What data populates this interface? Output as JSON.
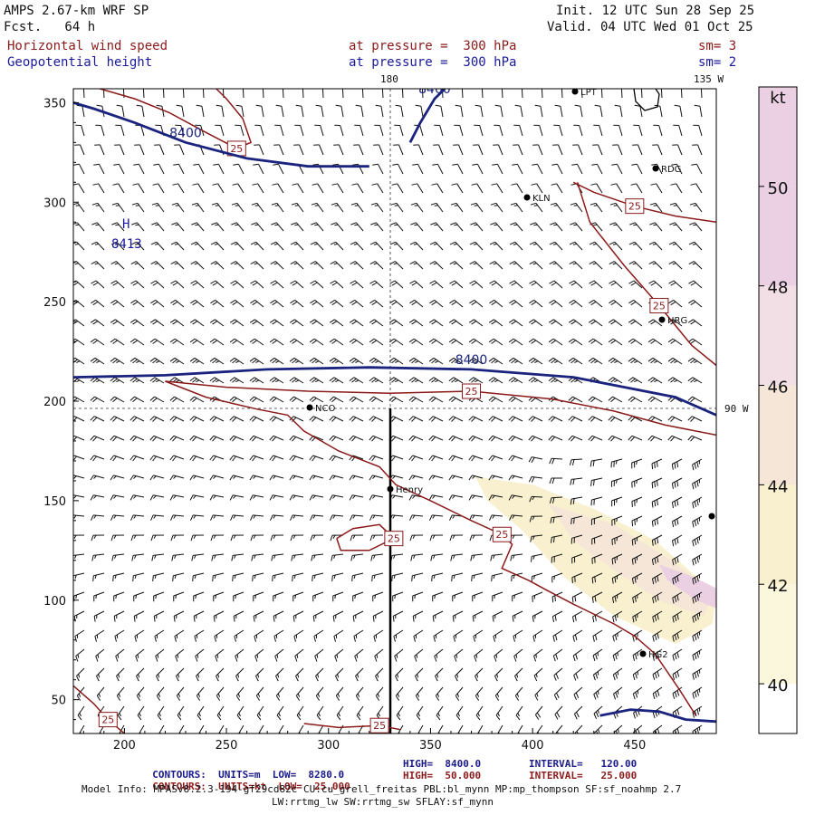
{
  "header": {
    "model": "AMPS 2.67-km WRF SP",
    "fcst": "Fcst.   64 h",
    "init": "Init. 12 UTC Sun 28 Sep 25",
    "valid": "Valid. 04 UTC Wed 01 Oct 25",
    "field1": "Horizontal wind speed",
    "field2": "Geopotential height",
    "pressure1": "at pressure =  300 hPa",
    "pressure2": "at pressure =  300 hPa",
    "sm1": "sm= 3",
    "sm2": "sm= 2"
  },
  "map_labels": {
    "lon_180": "180",
    "lon_135w": "135 W",
    "lon_90w": "90 W",
    "high": "H",
    "high_value": "8413",
    "stations": [
      "LPT",
      "RDG",
      "KLN",
      "HRG",
      "NCO",
      "Henry",
      "HG2"
    ]
  },
  "chart_data": {
    "type": "heatmap",
    "xlim": [
      175,
      490
    ],
    "ylim": [
      33,
      357
    ],
    "x_ticks": [
      200,
      250,
      300,
      350,
      400,
      450
    ],
    "y_ticks": [
      50,
      100,
      150,
      200,
      250,
      300,
      350
    ],
    "colorbar": {
      "unit": "kt",
      "ticks": [
        40,
        42,
        44,
        46,
        48,
        50
      ],
      "range": [
        39,
        52
      ],
      "colors": [
        "#ffffff",
        "#fbf7dc",
        "#f8f0ce",
        "#f6e6d8",
        "#f2dfe6",
        "#ead0e2"
      ]
    },
    "height_contours": [
      {
        "label": "8400",
        "points": [
          [
            175,
            350
          ],
          [
            185,
            347
          ],
          [
            205,
            340
          ],
          [
            230,
            330
          ],
          [
            260,
            322
          ],
          [
            290,
            318
          ],
          [
            320,
            318
          ]
        ]
      },
      {
        "label": "8400",
        "points": [
          [
            175,
            212
          ],
          [
            220,
            213
          ],
          [
            270,
            216
          ],
          [
            320,
            217
          ],
          [
            370,
            216
          ],
          [
            420,
            212
          ],
          [
            470,
            202
          ],
          [
            490,
            193
          ]
        ]
      },
      {
        "label": "8400",
        "points": [
          [
            340,
            330
          ],
          [
            345,
            340
          ],
          [
            352,
            352
          ],
          [
            357,
            357
          ]
        ]
      },
      {
        "label": "",
        "points": [
          [
            433,
            42
          ],
          [
            448,
            45
          ],
          [
            462,
            44
          ],
          [
            475,
            40
          ],
          [
            490,
            39
          ]
        ]
      }
    ],
    "speed_contours": [
      {
        "label": "25",
        "points": [
          [
            188,
            357
          ],
          [
            205,
            352
          ],
          [
            222,
            345
          ],
          [
            240,
            335
          ],
          [
            255,
            327
          ],
          [
            262,
            330
          ],
          [
            258,
            342
          ],
          [
            250,
            352
          ],
          [
            245,
            357
          ]
        ]
      },
      {
        "label": "25",
        "points": [
          [
            422,
            310
          ],
          [
            428,
            290
          ],
          [
            445,
            268
          ],
          [
            462,
            248
          ],
          [
            478,
            228
          ],
          [
            490,
            218
          ]
        ]
      },
      {
        "label": "25",
        "points": [
          [
            420,
            310
          ],
          [
            430,
            305
          ],
          [
            450,
            298
          ],
          [
            470,
            293
          ],
          [
            490,
            290
          ]
        ]
      },
      {
        "label": "25",
        "points": [
          [
            220,
            210
          ],
          [
            250,
            207
          ],
          [
            290,
            205
          ],
          [
            330,
            204
          ],
          [
            370,
            205
          ],
          [
            410,
            201
          ],
          [
            440,
            195
          ],
          [
            465,
            188
          ],
          [
            490,
            183
          ]
        ]
      },
      {
        "label": "25",
        "points": [
          [
            220,
            210
          ],
          [
            240,
            202
          ],
          [
            265,
            196
          ],
          [
            280,
            193
          ],
          [
            288,
            185
          ],
          [
            305,
            175
          ],
          [
            325,
            167
          ],
          [
            333,
            158
          ],
          [
            350,
            150
          ],
          [
            370,
            140
          ],
          [
            385,
            133
          ],
          [
            390,
            128
          ],
          [
            385,
            116
          ],
          [
            398,
            110
          ],
          [
            407,
            105
          ],
          [
            420,
            98
          ],
          [
            440,
            88
          ],
          [
            450,
            82
          ],
          [
            460,
            73
          ],
          [
            472,
            55
          ],
          [
            480,
            42
          ]
        ]
      },
      {
        "label": "25",
        "points": [
          [
            304,
            131
          ],
          [
            312,
            136
          ],
          [
            325,
            138
          ],
          [
            332,
            131
          ],
          [
            320,
            125
          ],
          [
            306,
            125
          ],
          [
            304,
            131
          ]
        ]
      },
      {
        "label": "25",
        "points": [
          [
            175,
            57
          ],
          [
            185,
            48
          ],
          [
            192,
            40
          ],
          [
            200,
            33
          ]
        ]
      },
      {
        "label": "25",
        "points": [
          [
            288,
            38
          ],
          [
            305,
            36
          ],
          [
            325,
            37
          ],
          [
            335,
            35
          ]
        ]
      }
    ],
    "speed_shading": [
      {
        "value": 42,
        "points": [
          [
            372,
            162
          ],
          [
            400,
            158
          ],
          [
            430,
            146
          ],
          [
            460,
            130
          ],
          [
            480,
            112
          ],
          [
            490,
            102
          ],
          [
            488,
            88
          ],
          [
            470,
            78
          ],
          [
            440,
            92
          ],
          [
            415,
            112
          ],
          [
            395,
            135
          ],
          [
            378,
            150
          ]
        ]
      },
      {
        "value": 44,
        "points": [
          [
            408,
            148
          ],
          [
            440,
            138
          ],
          [
            468,
            120
          ],
          [
            488,
            104
          ],
          [
            484,
            92
          ],
          [
            462,
            100
          ],
          [
            440,
            115
          ],
          [
            420,
            130
          ]
        ]
      },
      {
        "value": 48,
        "points": [
          [
            462,
            118
          ],
          [
            478,
            112
          ],
          [
            490,
            106
          ],
          [
            490,
            96
          ],
          [
            480,
            100
          ],
          [
            466,
            110
          ]
        ]
      }
    ],
    "wind_barbs": {
      "north": {
        "u": 0,
        "v": -12
      },
      "center": {
        "u": 22,
        "v": -14
      },
      "south": {
        "u": 10,
        "v": 18
      },
      "southeast": {
        "u": 32,
        "v": 20
      }
    }
  },
  "footer": {
    "line1_left": "CONTOURS:  UNITS=m  LOW=  8280.0",
    "line1_mid": "HIGH=  8400.0",
    "line1_right": "INTERVAL=   120.00",
    "line2_left": "CONTOURS:  UNITS=kt  LOW=  25.000",
    "line2_mid": "HIGH=  50.000",
    "line2_right": "INTERVAL=   25.000",
    "model_info": "Model Info: MPASv8.2.3-194-gf29cd82c CU:cu_grell_freitas PBL:bl_mynn MP:mp_thompson SF:sf_noahmp 2.7",
    "model_info2": "LW:rrtmg_lw SW:rrtmg_sw SFLAY:sf_mynn"
  }
}
